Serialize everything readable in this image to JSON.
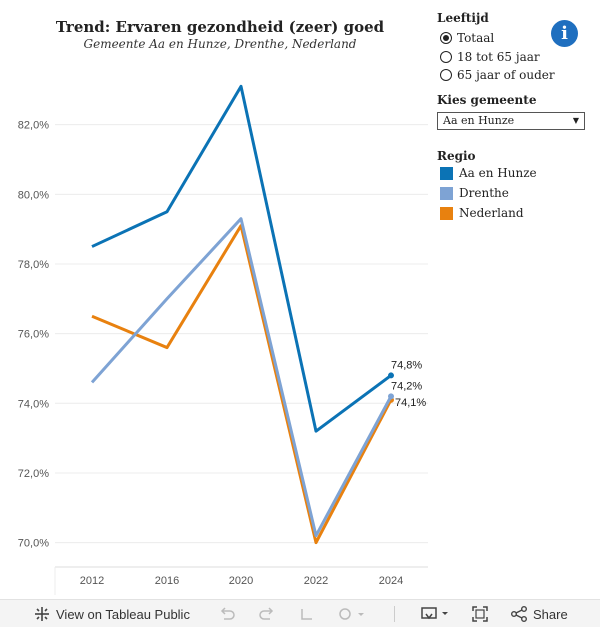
{
  "header": {
    "title": "Trend: Ervaren gezondheid (zeer) goed",
    "subtitle": "Gemeente Aa en Hunze, Drenthe, Nederland"
  },
  "filters": {
    "age_heading": "Leeftijd",
    "age_options": [
      "Totaal",
      "18 tot 65 jaar",
      "65 jaar of ouder"
    ],
    "age_selected": "Totaal",
    "municipality_heading": "Kies gemeente",
    "municipality_selected": "Aa en Hunze"
  },
  "legend": {
    "heading": "Regio",
    "items": [
      {
        "label": "Aa en Hunze",
        "color": "#0b73b5"
      },
      {
        "label": "Drenthe",
        "color": "#7ea3d4"
      },
      {
        "label": "Nederland",
        "color": "#e8810f"
      }
    ]
  },
  "info_icon": "info-icon",
  "toolbar": {
    "view_label": "View on Tableau Public",
    "share_label": "Share"
  },
  "chart_data": {
    "type": "line",
    "title": "Trend: Ervaren gezondheid (zeer) goed",
    "subtitle": "Gemeente Aa en Hunze, Drenthe, Nederland",
    "x": [
      "2012",
      "2016",
      "2020",
      "2022",
      "2024"
    ],
    "ylim": [
      69.3,
      84.0
    ],
    "yticks": [
      70,
      72,
      74,
      76,
      78,
      80,
      82
    ],
    "ytick_labels": [
      "70,0%",
      "72,0%",
      "74,0%",
      "76,0%",
      "78,0%",
      "80,0%",
      "82,0%"
    ],
    "series": [
      {
        "name": "Aa en Hunze",
        "color": "#0b73b5",
        "values": [
          78.5,
          79.5,
          83.1,
          73.2,
          74.8
        ],
        "end_label": "74,8%"
      },
      {
        "name": "Drenthe",
        "color": "#7ea3d4",
        "values": [
          74.6,
          77.0,
          79.3,
          70.2,
          74.2
        ],
        "end_label": "74,2%"
      },
      {
        "name": "Nederland",
        "color": "#e8810f",
        "values": [
          76.5,
          75.6,
          79.1,
          70.0,
          74.1
        ],
        "end_label": "74,1%"
      }
    ],
    "grid": true,
    "legend_position": "right"
  }
}
